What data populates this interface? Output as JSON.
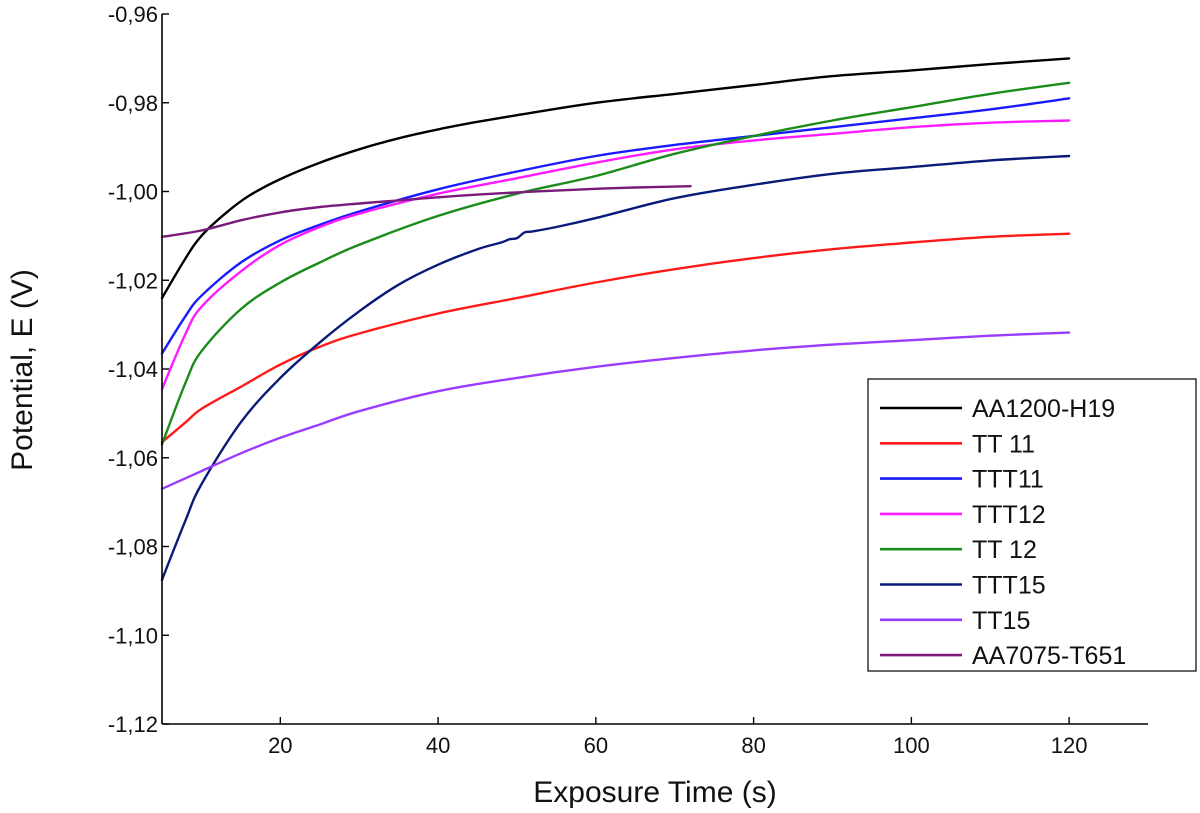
{
  "chart_data": {
    "type": "line",
    "title": "",
    "xlabel": "Exposure Time (s)",
    "ylabel": "Potential, E (V)",
    "xlim": [
      5,
      130
    ],
    "ylim": [
      -1.12,
      -0.96
    ],
    "xticks": [
      20,
      40,
      60,
      80,
      100,
      120
    ],
    "xtick_labels": [
      "20",
      "40",
      "60",
      "80",
      "100",
      "120"
    ],
    "yticks": [
      -0.96,
      -0.98,
      -1.0,
      -1.02,
      -1.04,
      -1.06,
      -1.08,
      -1.1,
      -1.12
    ],
    "ytick_labels": [
      "-0,96",
      "-0,98",
      "-1,00",
      "-1,02",
      "-1,04",
      "-1,06",
      "-1,08",
      "-1,10",
      "-1,12"
    ],
    "grid": false,
    "legend_position": "right",
    "series": [
      {
        "name": "AA1200-H19",
        "color": "#000000",
        "x": [
          5,
          8,
          10,
          13,
          16,
          20,
          25,
          30,
          35,
          40,
          45,
          50,
          60,
          70,
          80,
          90,
          100,
          110,
          120
        ],
        "y": [
          -1.024,
          -1.015,
          -1.01,
          -1.005,
          -1.001,
          -0.9972,
          -0.9935,
          -0.9905,
          -0.988,
          -0.986,
          -0.9843,
          -0.9828,
          -0.98,
          -0.978,
          -0.976,
          -0.974,
          -0.9727,
          -0.9713,
          -0.97
        ]
      },
      {
        "name": "TT 11",
        "color": "#ff1a1a",
        "x": [
          5,
          8,
          10,
          15,
          20,
          25,
          30,
          40,
          50,
          60,
          70,
          80,
          90,
          100,
          110,
          120
        ],
        "y": [
          -1.0565,
          -1.052,
          -1.049,
          -1.044,
          -1.039,
          -1.035,
          -1.032,
          -1.0275,
          -1.024,
          -1.0205,
          -1.0175,
          -1.015,
          -1.013,
          -1.0115,
          -1.0102,
          -1.0095
        ]
      },
      {
        "name": "TTT11",
        "color": "#1a1aff",
        "x": [
          5,
          8,
          10,
          15,
          20,
          25,
          30,
          40,
          50,
          60,
          70,
          80,
          90,
          100,
          110,
          120
        ],
        "y": [
          -1.0365,
          -1.028,
          -1.0235,
          -1.016,
          -1.011,
          -1.0075,
          -1.0045,
          -0.9995,
          -0.9955,
          -0.992,
          -0.9895,
          -0.9875,
          -0.9855,
          -0.9835,
          -0.9815,
          -0.979
        ]
      },
      {
        "name": "TTT12",
        "color": "#ff1aff",
        "x": [
          5,
          8,
          10,
          15,
          20,
          25,
          30,
          40,
          50,
          60,
          70,
          80,
          90,
          100,
          110,
          120
        ],
        "y": [
          -1.0445,
          -1.032,
          -1.026,
          -1.018,
          -1.012,
          -1.008,
          -1.005,
          -1.0005,
          -0.997,
          -0.9935,
          -0.9905,
          -0.9885,
          -0.987,
          -0.9855,
          -0.9845,
          -0.984
        ]
      },
      {
        "name": "TT 12",
        "color": "#1a8c1a",
        "x": [
          5,
          8,
          10,
          15,
          20,
          25,
          30,
          40,
          50,
          60,
          70,
          80,
          90,
          100,
          110,
          120
        ],
        "y": [
          -1.057,
          -1.043,
          -1.036,
          -1.0265,
          -1.0205,
          -1.016,
          -1.012,
          -1.0055,
          -1.0005,
          -0.9965,
          -0.9915,
          -0.9875,
          -0.984,
          -0.981,
          -0.978,
          -0.9755
        ]
      },
      {
        "name": "TTT15",
        "color": "#0a1a78",
        "x": [
          5,
          8,
          10,
          15,
          20,
          25,
          30,
          35,
          40,
          45,
          48,
          49,
          50,
          51,
          52,
          55,
          60,
          70,
          80,
          90,
          100,
          110,
          120
        ],
        "y": [
          -1.0875,
          -1.074,
          -1.066,
          -1.052,
          -1.042,
          -1.034,
          -1.027,
          -1.021,
          -1.0165,
          -1.013,
          -1.0115,
          -1.0108,
          -1.0105,
          -1.0092,
          -1.009,
          -1.008,
          -1.006,
          -1.0015,
          -0.9985,
          -0.996,
          -0.9945,
          -0.993,
          -0.992
        ]
      },
      {
        "name": "TT15",
        "color": "#9a3cff",
        "x": [
          5,
          10,
          15,
          20,
          25,
          30,
          40,
          50,
          60,
          70,
          80,
          90,
          100,
          110,
          120
        ],
        "y": [
          -1.067,
          -1.063,
          -1.059,
          -1.0555,
          -1.0525,
          -1.0495,
          -1.045,
          -1.042,
          -1.0395,
          -1.0375,
          -1.0358,
          -1.0345,
          -1.0335,
          -1.0325,
          -1.0318
        ]
      },
      {
        "name": "AA7075-T651",
        "color": "#7a1a7a",
        "x": [
          5,
          10,
          15,
          20,
          25,
          30,
          35,
          40,
          45,
          50,
          55,
          60,
          65,
          72
        ],
        "y": [
          -1.0102,
          -1.0088,
          -1.0065,
          -1.0047,
          -1.0035,
          -1.0027,
          -1.002,
          -1.0013,
          -1.0007,
          -1.0002,
          -0.9998,
          -0.9994,
          -0.9991,
          -0.9988
        ]
      }
    ]
  }
}
